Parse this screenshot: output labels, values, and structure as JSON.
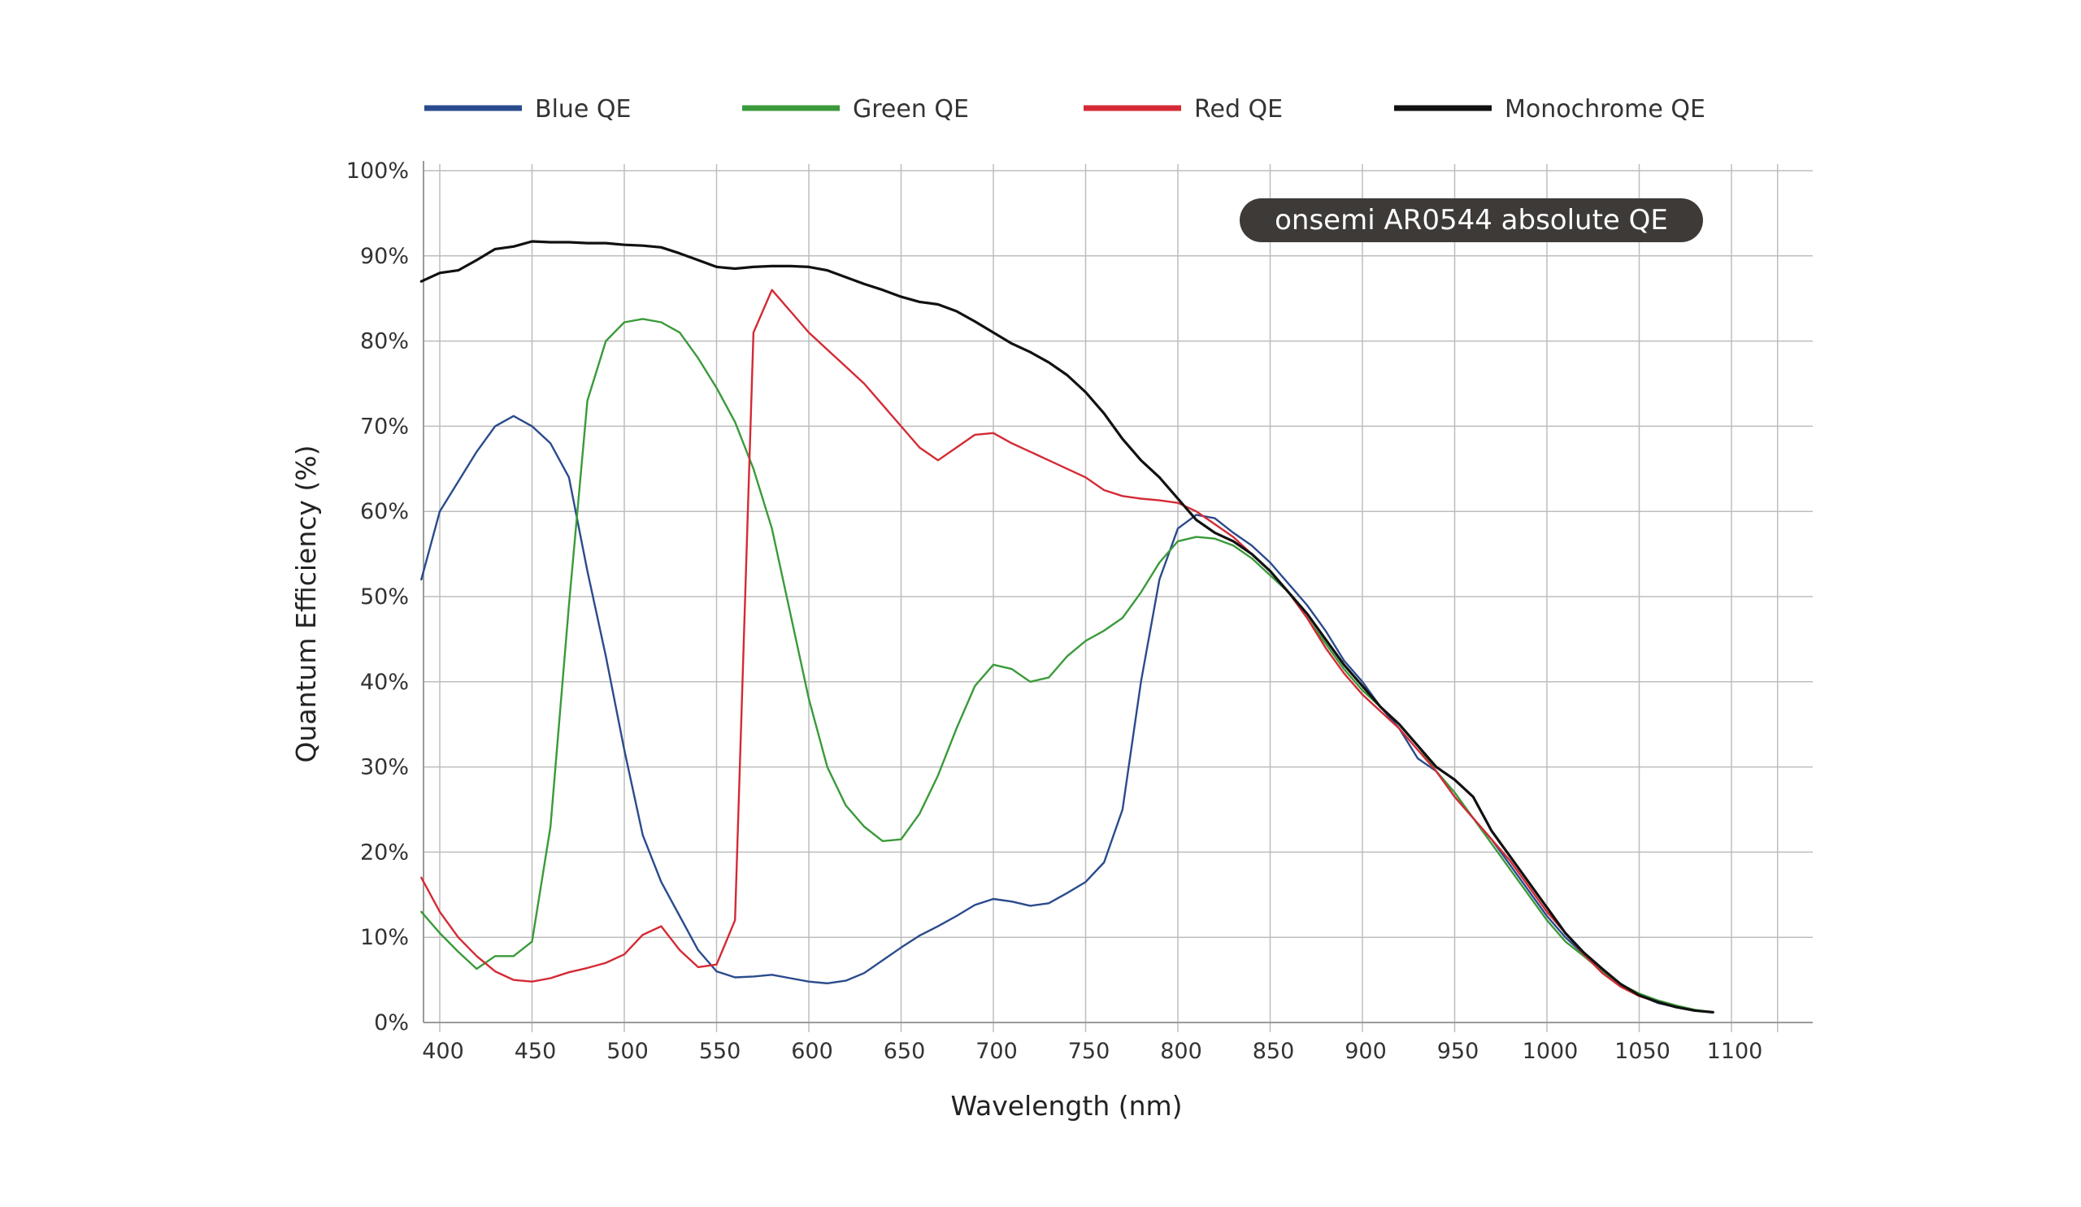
{
  "chart_data": {
    "type": "line",
    "title": "onsemi AR0544 absolute QE",
    "xlabel": "Wavelength (nm)",
    "ylabel": "Quantum Efficiency (%)",
    "xlim": [
      390,
      1140
    ],
    "ylim": [
      0,
      100
    ],
    "x_ticks": [
      400,
      450,
      500,
      550,
      600,
      650,
      700,
      750,
      800,
      850,
      900,
      950,
      1000,
      1050,
      1100
    ],
    "x_tick_labels": [
      "400",
      "450",
      "500",
      "550",
      "600",
      "650",
      "700",
      "750",
      "800",
      "850",
      "900",
      "950",
      "1000",
      "1050",
      "1100"
    ],
    "y_ticks": [
      0,
      10,
      20,
      30,
      40,
      50,
      60,
      70,
      80,
      90,
      100
    ],
    "y_tick_labels": [
      "0%",
      "10%",
      "20%",
      "30%",
      "40%",
      "50%",
      "60%",
      "70%",
      "80%",
      "90%",
      "100%"
    ],
    "grid": true,
    "legend_position": "top",
    "series": [
      {
        "name": "Blue QE",
        "color": "#2a4b8d",
        "points": [
          [
            390,
            52
          ],
          [
            400,
            60
          ],
          [
            410,
            63.5
          ],
          [
            420,
            67
          ],
          [
            430,
            70
          ],
          [
            440,
            71.2
          ],
          [
            450,
            70
          ],
          [
            460,
            68
          ],
          [
            470,
            64
          ],
          [
            480,
            53
          ],
          [
            490,
            43
          ],
          [
            500,
            32
          ],
          [
            510,
            22
          ],
          [
            520,
            16.5
          ],
          [
            530,
            12.5
          ],
          [
            540,
            8.5
          ],
          [
            550,
            6
          ],
          [
            560,
            5.3
          ],
          [
            570,
            5.4
          ],
          [
            580,
            5.6
          ],
          [
            590,
            5.2
          ],
          [
            600,
            4.8
          ],
          [
            610,
            4.6
          ],
          [
            620,
            4.9
          ],
          [
            630,
            5.8
          ],
          [
            640,
            7.3
          ],
          [
            650,
            8.8
          ],
          [
            660,
            10.2
          ],
          [
            670,
            11.3
          ],
          [
            680,
            12.5
          ],
          [
            690,
            13.8
          ],
          [
            700,
            14.5
          ],
          [
            710,
            14.2
          ],
          [
            720,
            13.7
          ],
          [
            730,
            14
          ],
          [
            740,
            15.2
          ],
          [
            750,
            16.5
          ],
          [
            760,
            18.8
          ],
          [
            770,
            25
          ],
          [
            780,
            40
          ],
          [
            790,
            52
          ],
          [
            800,
            58
          ],
          [
            810,
            59.6
          ],
          [
            820,
            59.2
          ],
          [
            830,
            57.5
          ],
          [
            840,
            56
          ],
          [
            850,
            54
          ],
          [
            860,
            51.5
          ],
          [
            870,
            49
          ],
          [
            880,
            46
          ],
          [
            890,
            42.5
          ],
          [
            900,
            40
          ],
          [
            910,
            37
          ],
          [
            920,
            34.5
          ],
          [
            930,
            31
          ],
          [
            940,
            29.5
          ],
          [
            950,
            26.5
          ],
          [
            960,
            24
          ],
          [
            970,
            21.5
          ],
          [
            980,
            18.5
          ],
          [
            990,
            15.5
          ],
          [
            1000,
            12.5
          ],
          [
            1010,
            10
          ],
          [
            1020,
            8
          ],
          [
            1030,
            6.2
          ],
          [
            1040,
            4.5
          ],
          [
            1050,
            3.2
          ],
          [
            1060,
            2.3
          ],
          [
            1070,
            1.8
          ],
          [
            1080,
            1.4
          ],
          [
            1090,
            1.2
          ]
        ]
      },
      {
        "name": "Green QE",
        "color": "#3a9a3a",
        "points": [
          [
            390,
            13
          ],
          [
            400,
            10.5
          ],
          [
            410,
            8.3
          ],
          [
            420,
            6.3
          ],
          [
            430,
            7.8
          ],
          [
            440,
            7.8
          ],
          [
            450,
            9.5
          ],
          [
            460,
            23
          ],
          [
            470,
            49
          ],
          [
            480,
            73
          ],
          [
            490,
            80
          ],
          [
            500,
            82.2
          ],
          [
            510,
            82.6
          ],
          [
            520,
            82.2
          ],
          [
            530,
            81
          ],
          [
            540,
            78
          ],
          [
            550,
            74.5
          ],
          [
            560,
            70.5
          ],
          [
            570,
            65
          ],
          [
            580,
            58
          ],
          [
            590,
            48
          ],
          [
            600,
            38
          ],
          [
            610,
            30
          ],
          [
            620,
            25.5
          ],
          [
            630,
            23
          ],
          [
            640,
            21.3
          ],
          [
            650,
            21.5
          ],
          [
            660,
            24.5
          ],
          [
            670,
            29
          ],
          [
            680,
            34.5
          ],
          [
            690,
            39.5
          ],
          [
            700,
            42
          ],
          [
            710,
            41.5
          ],
          [
            720,
            40
          ],
          [
            730,
            40.5
          ],
          [
            740,
            43
          ],
          [
            750,
            44.8
          ],
          [
            760,
            46
          ],
          [
            770,
            47.5
          ],
          [
            780,
            50.5
          ],
          [
            790,
            54
          ],
          [
            800,
            56.5
          ],
          [
            810,
            57
          ],
          [
            820,
            56.8
          ],
          [
            830,
            56
          ],
          [
            840,
            54.5
          ],
          [
            850,
            52.5
          ],
          [
            860,
            50.5
          ],
          [
            870,
            47.5
          ],
          [
            880,
            44.5
          ],
          [
            890,
            41.5
          ],
          [
            900,
            39
          ],
          [
            910,
            37
          ],
          [
            920,
            35
          ],
          [
            930,
            32.5
          ],
          [
            940,
            29.5
          ],
          [
            950,
            27
          ],
          [
            960,
            24
          ],
          [
            970,
            21
          ],
          [
            980,
            18
          ],
          [
            990,
            15
          ],
          [
            1000,
            12
          ],
          [
            1010,
            9.5
          ],
          [
            1020,
            7.8
          ],
          [
            1030,
            6
          ],
          [
            1040,
            4.5
          ],
          [
            1050,
            3.4
          ],
          [
            1060,
            2.6
          ],
          [
            1070,
            2
          ],
          [
            1080,
            1.5
          ],
          [
            1090,
            1.2
          ]
        ]
      },
      {
        "name": "Red QE",
        "color": "#d42a35",
        "points": [
          [
            390,
            17
          ],
          [
            400,
            13
          ],
          [
            410,
            10
          ],
          [
            420,
            7.8
          ],
          [
            430,
            6
          ],
          [
            440,
            5
          ],
          [
            450,
            4.8
          ],
          [
            460,
            5.2
          ],
          [
            470,
            5.9
          ],
          [
            480,
            6.4
          ],
          [
            490,
            7
          ],
          [
            500,
            8
          ],
          [
            510,
            10.3
          ],
          [
            520,
            11.3
          ],
          [
            530,
            8.5
          ],
          [
            540,
            6.5
          ],
          [
            550,
            6.8
          ],
          [
            560,
            12
          ],
          [
            570,
            81
          ],
          [
            580,
            86
          ],
          [
            590,
            83.5
          ],
          [
            600,
            81
          ],
          [
            610,
            79
          ],
          [
            620,
            77
          ],
          [
            630,
            75
          ],
          [
            640,
            72.5
          ],
          [
            650,
            70
          ],
          [
            660,
            67.5
          ],
          [
            670,
            66
          ],
          [
            680,
            67.5
          ],
          [
            690,
            69
          ],
          [
            700,
            69.2
          ],
          [
            710,
            68
          ],
          [
            720,
            67
          ],
          [
            730,
            66
          ],
          [
            740,
            65
          ],
          [
            750,
            64
          ],
          [
            760,
            62.5
          ],
          [
            770,
            61.8
          ],
          [
            780,
            61.5
          ],
          [
            790,
            61.3
          ],
          [
            800,
            61
          ],
          [
            810,
            60
          ],
          [
            820,
            58.5
          ],
          [
            830,
            57
          ],
          [
            840,
            55
          ],
          [
            850,
            53
          ],
          [
            860,
            50.5
          ],
          [
            870,
            47.5
          ],
          [
            880,
            44
          ],
          [
            890,
            41
          ],
          [
            900,
            38.5
          ],
          [
            910,
            36.5
          ],
          [
            920,
            34.5
          ],
          [
            930,
            32
          ],
          [
            940,
            29.5
          ],
          [
            950,
            26.5
          ],
          [
            960,
            24
          ],
          [
            970,
            21.5
          ],
          [
            980,
            19
          ],
          [
            990,
            16
          ],
          [
            1000,
            13
          ],
          [
            1010,
            10.5
          ],
          [
            1020,
            8
          ],
          [
            1030,
            5.8
          ],
          [
            1040,
            4.2
          ],
          [
            1050,
            3.1
          ],
          [
            1060,
            2.4
          ],
          [
            1070,
            1.8
          ],
          [
            1080,
            1.4
          ],
          [
            1090,
            1.2
          ]
        ]
      },
      {
        "name": "Monochrome QE",
        "color": "#111111",
        "points": [
          [
            390,
            87
          ],
          [
            400,
            88
          ],
          [
            410,
            88.3
          ],
          [
            420,
            89.5
          ],
          [
            430,
            90.8
          ],
          [
            440,
            91.1
          ],
          [
            450,
            91.7
          ],
          [
            460,
            91.6
          ],
          [
            470,
            91.6
          ],
          [
            480,
            91.5
          ],
          [
            490,
            91.5
          ],
          [
            500,
            91.3
          ],
          [
            510,
            91.2
          ],
          [
            520,
            91
          ],
          [
            530,
            90.3
          ],
          [
            540,
            89.5
          ],
          [
            550,
            88.7
          ],
          [
            560,
            88.5
          ],
          [
            570,
            88.7
          ],
          [
            580,
            88.8
          ],
          [
            590,
            88.8
          ],
          [
            600,
            88.7
          ],
          [
            610,
            88.3
          ],
          [
            620,
            87.5
          ],
          [
            630,
            86.7
          ],
          [
            640,
            86
          ],
          [
            650,
            85.2
          ],
          [
            660,
            84.6
          ],
          [
            670,
            84.3
          ],
          [
            680,
            83.5
          ],
          [
            690,
            82.3
          ],
          [
            700,
            81
          ],
          [
            710,
            79.7
          ],
          [
            720,
            78.7
          ],
          [
            730,
            77.5
          ],
          [
            740,
            76
          ],
          [
            750,
            74
          ],
          [
            760,
            71.5
          ],
          [
            770,
            68.5
          ],
          [
            780,
            66
          ],
          [
            790,
            64
          ],
          [
            800,
            61.5
          ],
          [
            810,
            59
          ],
          [
            820,
            57.5
          ],
          [
            830,
            56.5
          ],
          [
            840,
            55
          ],
          [
            850,
            53
          ],
          [
            860,
            50.5
          ],
          [
            870,
            48
          ],
          [
            880,
            45
          ],
          [
            890,
            42
          ],
          [
            900,
            39.5
          ],
          [
            910,
            37
          ],
          [
            920,
            35
          ],
          [
            930,
            32.5
          ],
          [
            940,
            30
          ],
          [
            950,
            28.5
          ],
          [
            960,
            26.5
          ],
          [
            970,
            22.5
          ],
          [
            980,
            19.5
          ],
          [
            990,
            16.5
          ],
          [
            1000,
            13.5
          ],
          [
            1010,
            10.5
          ],
          [
            1020,
            8.2
          ],
          [
            1030,
            6.3
          ],
          [
            1040,
            4.5
          ],
          [
            1050,
            3.2
          ],
          [
            1060,
            2.4
          ],
          [
            1070,
            1.8
          ],
          [
            1080,
            1.4
          ],
          [
            1090,
            1.2
          ]
        ]
      }
    ]
  }
}
